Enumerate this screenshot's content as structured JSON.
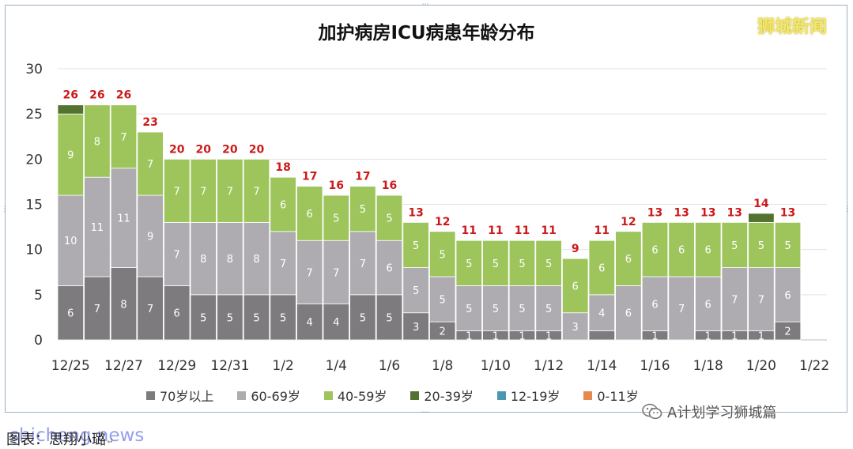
{
  "header": {
    "title": "加护病房ICU病患年龄分布",
    "watermark": "狮城新闻"
  },
  "footer": {
    "caption": "图表：思翔小璐",
    "caption_suffix": "↵",
    "source_watermark": "shicheng.news",
    "wechat_account": "A计划学习狮城篇"
  },
  "colors": {
    "70岁以上": "#7d7b7d",
    "60-69岁": "#aeacb0",
    "40-59岁": "#9dc55b",
    "20-39岁": "#53712f",
    "12-19岁": "#4b97b2",
    "0-11岁": "#e5894d",
    "total_label": "#cc1a1a",
    "segment_label": "#ffffff",
    "grid": "#e3e3e3"
  },
  "chart_data": {
    "type": "bar",
    "stacked": true,
    "title": "加护病房ICU病患年龄分布",
    "xlabel": "",
    "ylabel": "",
    "ylim": [
      0,
      30
    ],
    "yticks": [
      0,
      5,
      10,
      15,
      20,
      25,
      30
    ],
    "grid": true,
    "legend_position": "bottom",
    "x_tick_labels": [
      "12/25",
      "12/27",
      "12/29",
      "12/31",
      "1/2",
      "1/4",
      "1/6",
      "1/8",
      "1/10",
      "1/12",
      "1/14",
      "1/16",
      "1/18",
      "1/20",
      "1/22"
    ],
    "categories": [
      "12/25",
      "12/26",
      "12/27",
      "12/28",
      "12/29",
      "12/30",
      "12/31",
      "1/1",
      "1/2",
      "1/3",
      "1/4",
      "1/5",
      "1/6",
      "1/7",
      "1/8",
      "1/9",
      "1/10",
      "1/11",
      "1/12",
      "1/13",
      "1/14",
      "1/15",
      "1/16",
      "1/17",
      "1/18",
      "1/19",
      "1/20",
      "1/21"
    ],
    "series": [
      {
        "name": "70岁以上",
        "values": [
          6,
          7,
          8,
          7,
          6,
          5,
          5,
          5,
          5,
          4,
          4,
          5,
          5,
          3,
          2,
          1,
          1,
          1,
          1,
          0,
          1,
          0,
          1,
          0,
          1,
          1,
          1,
          2
        ]
      },
      {
        "name": "60-69岁",
        "values": [
          10,
          11,
          11,
          9,
          7,
          8,
          8,
          8,
          7,
          7,
          7,
          7,
          6,
          5,
          5,
          5,
          5,
          5,
          5,
          3,
          4,
          6,
          6,
          7,
          6,
          7,
          7,
          6
        ]
      },
      {
        "name": "40-59岁",
        "values": [
          9,
          8,
          7,
          7,
          7,
          7,
          7,
          7,
          6,
          6,
          5,
          5,
          5,
          5,
          5,
          5,
          5,
          5,
          5,
          6,
          6,
          6,
          6,
          6,
          6,
          5,
          5,
          5
        ]
      },
      {
        "name": "20-39岁",
        "values": [
          1,
          0,
          0,
          0,
          0,
          0,
          0,
          0,
          0,
          0,
          0,
          0,
          0,
          0,
          0,
          0,
          0,
          0,
          0,
          0,
          0,
          0,
          0,
          0,
          0,
          0,
          1,
          0
        ]
      },
      {
        "name": "12-19岁",
        "values": [
          0,
          0,
          0,
          0,
          0,
          0,
          0,
          0,
          0,
          0,
          0,
          0,
          0,
          0,
          0,
          0,
          0,
          0,
          0,
          0,
          0,
          0,
          0,
          0,
          0,
          0,
          0,
          0
        ]
      },
      {
        "name": "0-11岁",
        "values": [
          0,
          0,
          0,
          0,
          0,
          0,
          0,
          0,
          0,
          0,
          0,
          0,
          0,
          0,
          0,
          0,
          0,
          0,
          0,
          0,
          0,
          0,
          0,
          0,
          0,
          0,
          0,
          0
        ]
      }
    ],
    "segment_labels": [
      [
        "6",
        "10",
        "9"
      ],
      [
        "7",
        "11",
        "8"
      ],
      [
        "8",
        "11",
        "7"
      ],
      [
        "7",
        "9",
        "7"
      ],
      [
        "6",
        "7",
        "7"
      ],
      [
        "5",
        "8",
        "7"
      ],
      [
        "5",
        "8",
        "7"
      ],
      [
        "5",
        "8",
        "7"
      ],
      [
        "5",
        "7",
        "6"
      ],
      [
        "4",
        "7",
        "6"
      ],
      [
        "4",
        "7",
        "5"
      ],
      [
        "5",
        "7",
        "5"
      ],
      [
        "5",
        "6",
        "5"
      ],
      [
        "3",
        "5",
        "5"
      ],
      [
        "2",
        "5",
        "5"
      ],
      [
        "1",
        "5",
        "5"
      ],
      [
        "1",
        "5",
        "5"
      ],
      [
        "1",
        "5",
        "5"
      ],
      [
        "1",
        "5",
        "5"
      ],
      [
        "",
        "3",
        "6"
      ],
      [
        "",
        "4",
        "6"
      ],
      [
        "",
        "6",
        "6"
      ],
      [
        "1",
        "6",
        "6"
      ],
      [
        "",
        "7",
        "6"
      ],
      [
        "1",
        "6",
        "6"
      ],
      [
        "1",
        "7",
        "5"
      ],
      [
        "1",
        "7",
        "5"
      ],
      [
        "2",
        "6",
        "5"
      ]
    ],
    "totals": [
      26,
      26,
      26,
      23,
      20,
      20,
      20,
      20,
      18,
      17,
      16,
      17,
      16,
      13,
      12,
      11,
      11,
      11,
      11,
      9,
      11,
      12,
      13,
      13,
      13,
      13,
      14,
      13
    ]
  }
}
